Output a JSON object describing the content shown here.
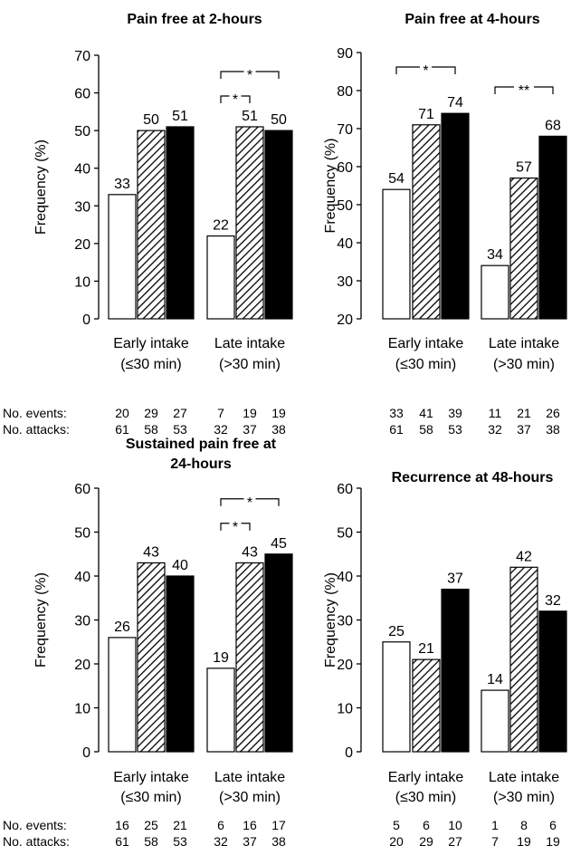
{
  "table_labels": {
    "events": "No. events:",
    "attacks": "No. attacks:"
  },
  "chart_data": [
    {
      "type": "bar",
      "title_lines": [
        "Pain free at 2-hours"
      ],
      "ylabel": "Frequency (%)",
      "ylim": [
        0,
        70
      ],
      "yticks": [
        0,
        10,
        20,
        30,
        40,
        50,
        60,
        70
      ],
      "groups": [
        {
          "line1": "Early intake",
          "line2": "(≤30 min)",
          "values": [
            33,
            50,
            51
          ],
          "events": [
            "20",
            "29",
            "27"
          ],
          "attacks": [
            "61",
            "58",
            "53"
          ]
        },
        {
          "line1": "Late intake",
          "line2": "(>30 min)",
          "values": [
            22,
            51,
            50
          ],
          "events": [
            "7",
            "19",
            "19"
          ],
          "attacks": [
            "32",
            "37",
            "38"
          ]
        }
      ],
      "bar_styles": [
        "white",
        "hatched",
        "black"
      ],
      "significance": [
        {
          "group": 1,
          "from": 0,
          "to": 1,
          "label": "*"
        },
        {
          "group": 1,
          "from": 0,
          "to": 2,
          "label": "*"
        }
      ]
    },
    {
      "type": "bar",
      "title_lines": [
        "Pain free at 4-hours"
      ],
      "ylabel": "Frequency (%)",
      "ylim": [
        20,
        90
      ],
      "yticks": [
        20,
        30,
        40,
        50,
        60,
        70,
        80,
        90
      ],
      "groups": [
        {
          "line1": "Early intake",
          "line2": "(≤30 min)",
          "values": [
            54,
            71,
            74
          ],
          "events": [
            "33",
            "41",
            "39"
          ],
          "attacks": [
            "61",
            "58",
            "53"
          ]
        },
        {
          "line1": "Late intake",
          "line2": "(>30 min)",
          "values": [
            34,
            57,
            68
          ],
          "events": [
            "11",
            "21",
            "26"
          ],
          "attacks": [
            "32",
            "37",
            "38"
          ]
        }
      ],
      "bar_styles": [
        "white",
        "hatched",
        "black"
      ],
      "significance": [
        {
          "group": 0,
          "from": 0,
          "to": 2,
          "label": "*"
        },
        {
          "group": 1,
          "from": 0,
          "to": 2,
          "label": "**"
        }
      ]
    },
    {
      "type": "bar",
      "title_lines": [
        "Sustained pain free at",
        "24-hours"
      ],
      "ylabel": "Frequency (%)",
      "ylim": [
        0,
        60
      ],
      "yticks": [
        0,
        10,
        20,
        30,
        40,
        50,
        60
      ],
      "groups": [
        {
          "line1": "Early intake",
          "line2": "(≤30 min)",
          "values": [
            26,
            43,
            40
          ],
          "events": [
            "16",
            "25",
            "21"
          ],
          "attacks": [
            "61",
            "58",
            "53"
          ]
        },
        {
          "line1": "Late intake",
          "line2": "(>30 min)",
          "values": [
            19,
            43,
            45
          ],
          "events": [
            "6",
            "16",
            "17"
          ],
          "attacks": [
            "32",
            "37",
            "38"
          ]
        }
      ],
      "bar_styles": [
        "white",
        "hatched",
        "black"
      ],
      "significance": [
        {
          "group": 1,
          "from": 0,
          "to": 1,
          "label": "*"
        },
        {
          "group": 1,
          "from": 0,
          "to": 2,
          "label": "*"
        }
      ]
    },
    {
      "type": "bar",
      "title_lines": [
        "Recurrence at 48-hours"
      ],
      "ylabel": "Frequency (%)",
      "ylim": [
        0,
        60
      ],
      "yticks": [
        0,
        10,
        20,
        30,
        40,
        50,
        60
      ],
      "groups": [
        {
          "line1": "Early intake",
          "line2": "(≤30 min)",
          "values": [
            25,
            21,
            37
          ],
          "events": [
            "5",
            "6",
            "10"
          ],
          "attacks": [
            "20",
            "29",
            "27"
          ]
        },
        {
          "line1": "Late intake",
          "line2": "(>30 min)",
          "values": [
            14,
            42,
            32
          ],
          "events": [
            "1",
            "8",
            "6"
          ],
          "attacks": [
            "7",
            "19",
            "19"
          ]
        }
      ],
      "bar_styles": [
        "white",
        "hatched",
        "black"
      ],
      "significance": []
    }
  ]
}
